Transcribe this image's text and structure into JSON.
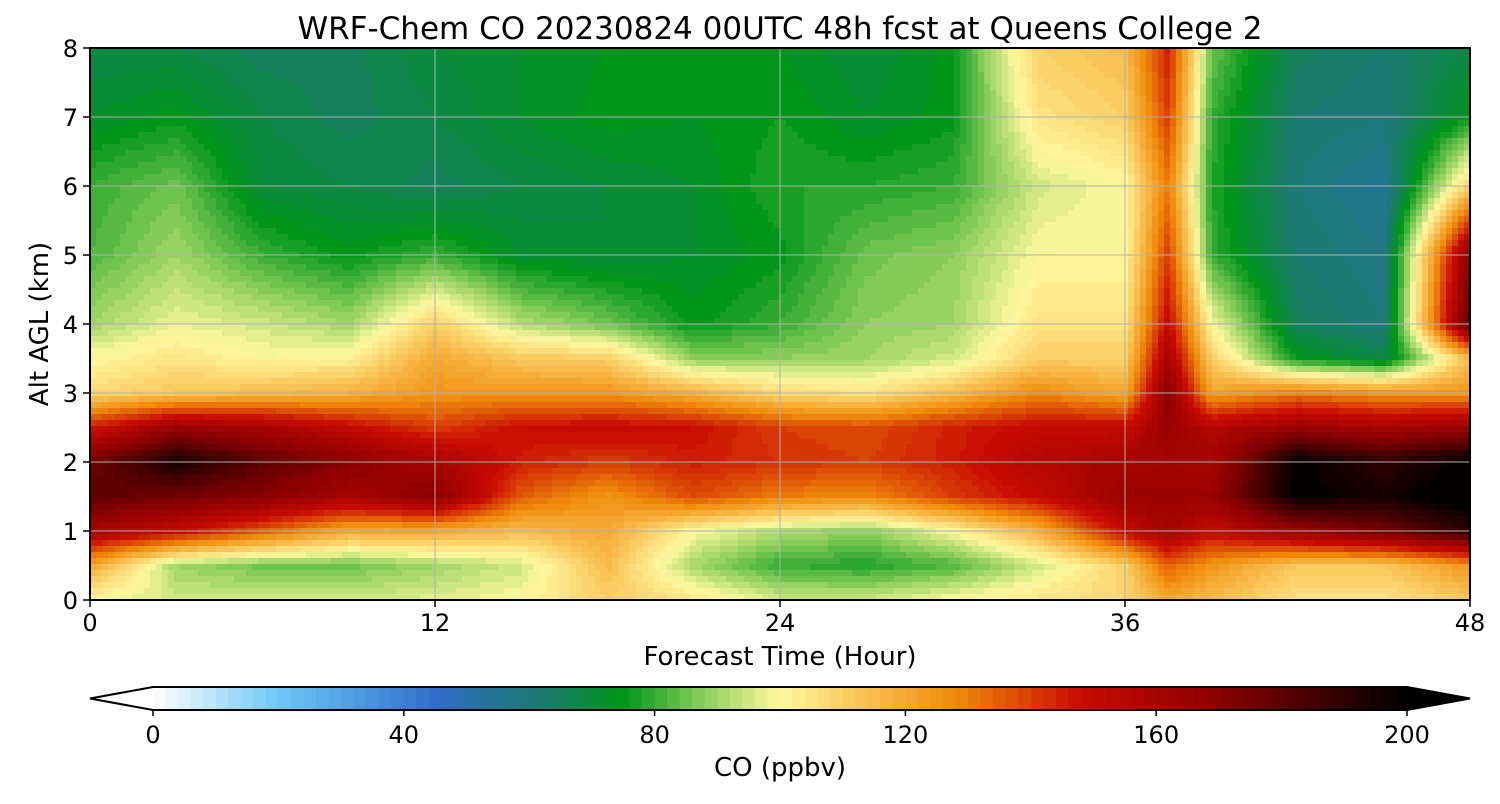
{
  "chart_data": {
    "type": "heatmap",
    "title": "WRF-Chem CO  20230824 00UTC 48h fcst at Queens College 2",
    "xlabel": "Forecast Time (Hour)",
    "ylabel": "Alt AGL (km)",
    "xlim": [
      0,
      48
    ],
    "ylim": [
      0,
      8
    ],
    "xticks": [
      0,
      12,
      24,
      36,
      48
    ],
    "yticks": [
      0,
      1,
      2,
      3,
      4,
      5,
      6,
      7,
      8
    ],
    "grid": true,
    "colorbar": {
      "label": "CO  (ppbv)",
      "min": 0,
      "max": 200,
      "ticks": [
        0,
        40,
        80,
        120,
        160,
        200
      ],
      "extend": "both",
      "levels": 100,
      "color_stops": [
        {
          "value": 0,
          "color": "#ffffff"
        },
        {
          "value": 20,
          "color": "#6ec8f5"
        },
        {
          "value": 45,
          "color": "#2f6dc9"
        },
        {
          "value": 62,
          "color": "#1b7a6e"
        },
        {
          "value": 75,
          "color": "#00961a"
        },
        {
          "value": 88,
          "color": "#8fcf5e"
        },
        {
          "value": 100,
          "color": "#fff8a0"
        },
        {
          "value": 115,
          "color": "#f8bc4c"
        },
        {
          "value": 128,
          "color": "#f08a0a"
        },
        {
          "value": 148,
          "color": "#c80a00"
        },
        {
          "value": 170,
          "color": "#8a0000"
        },
        {
          "value": 200,
          "color": "#000000"
        }
      ]
    },
    "x": [
      0,
      3,
      6,
      9,
      12,
      15,
      18,
      21,
      24,
      27,
      30,
      33,
      36,
      37.5,
      39,
      42,
      45,
      48
    ],
    "y": [
      0,
      0.5,
      1,
      1.5,
      2,
      2.5,
      3,
      3.5,
      4,
      5,
      6,
      7,
      8
    ],
    "z": [
      [
        100,
        95,
        95,
        95,
        97,
        100,
        110,
        105,
        95,
        95,
        100,
        105,
        108,
        120,
        115,
        105,
        105,
        112
      ],
      [
        120,
        90,
        85,
        85,
        90,
        95,
        115,
        90,
        80,
        78,
        82,
        95,
        110,
        135,
        125,
        112,
        112,
        125
      ],
      [
        160,
        150,
        135,
        120,
        120,
        115,
        120,
        100,
        92,
        88,
        100,
        118,
        150,
        160,
        150,
        165,
        175,
        190
      ],
      [
        180,
        175,
        170,
        160,
        170,
        135,
        125,
        138,
        130,
        128,
        140,
        150,
        165,
        165,
        165,
        200,
        195,
        205
      ],
      [
        175,
        195,
        180,
        170,
        160,
        145,
        140,
        145,
        142,
        140,
        145,
        155,
        160,
        162,
        160,
        200,
        190,
        200
      ],
      [
        145,
        165,
        160,
        150,
        140,
        148,
        150,
        148,
        140,
        138,
        145,
        150,
        150,
        165,
        155,
        165,
        160,
        165
      ],
      [
        108,
        112,
        115,
        118,
        125,
        125,
        125,
        118,
        108,
        105,
        115,
        128,
        120,
        170,
        122,
        130,
        125,
        125
      ],
      [
        100,
        105,
        100,
        102,
        120,
        112,
        110,
        88,
        88,
        90,
        95,
        110,
        110,
        160,
        110,
        75,
        68,
        115
      ],
      [
        90,
        98,
        95,
        90,
        110,
        92,
        85,
        75,
        80,
        88,
        90,
        105,
        105,
        150,
        100,
        65,
        60,
        180
      ],
      [
        82,
        90,
        80,
        75,
        80,
        72,
        70,
        72,
        75,
        85,
        88,
        100,
        100,
        140,
        80,
        62,
        58,
        170
      ],
      [
        80,
        85,
        70,
        68,
        65,
        68,
        70,
        72,
        78,
        78,
        80,
        95,
        100,
        130,
        78,
        60,
        55,
        110
      ],
      [
        72,
        75,
        68,
        65,
        68,
        72,
        75,
        74,
        76,
        72,
        75,
        105,
        110,
        140,
        80,
        62,
        60,
        75
      ],
      [
        68,
        68,
        65,
        65,
        70,
        72,
        74,
        74,
        74,
        70,
        75,
        110,
        115,
        145,
        85,
        65,
        62,
        68
      ]
    ]
  }
}
